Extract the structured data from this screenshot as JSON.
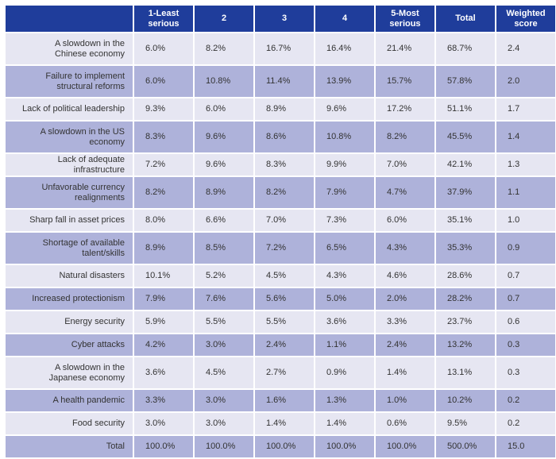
{
  "chart_data": {
    "type": "table",
    "columns": [
      "",
      "1-Least serious",
      "2",
      "3",
      "4",
      "5-Most serious",
      "Total",
      "Weighted score"
    ],
    "rows": [
      {
        "label": "A slowdown in the Chinese economy",
        "values": [
          "6.0%",
          "8.2%",
          "16.7%",
          "16.4%",
          "21.4%",
          "68.7%",
          "2.4"
        ]
      },
      {
        "label": "Failure to implement structural reforms",
        "values": [
          "6.0%",
          "10.8%",
          "11.4%",
          "13.9%",
          "15.7%",
          "57.8%",
          "2.0"
        ]
      },
      {
        "label": "Lack of political leadership",
        "values": [
          "9.3%",
          "6.0%",
          "8.9%",
          "9.6%",
          "17.2%",
          "51.1%",
          "1.7"
        ]
      },
      {
        "label": "A slowdown in the US economy",
        "values": [
          "8.3%",
          "9.6%",
          "8.6%",
          "10.8%",
          "8.2%",
          "45.5%",
          "1.4"
        ]
      },
      {
        "label": "Lack of adequate infrastructure",
        "values": [
          "7.2%",
          "9.6%",
          "8.3%",
          "9.9%",
          "7.0%",
          "42.1%",
          "1.3"
        ]
      },
      {
        "label": "Unfavorable currency realignments",
        "values": [
          "8.2%",
          "8.9%",
          "8.2%",
          "7.9%",
          "4.7%",
          "37.9%",
          "1.1"
        ]
      },
      {
        "label": "Sharp fall in asset prices",
        "values": [
          "8.0%",
          "6.6%",
          "7.0%",
          "7.3%",
          "6.0%",
          "35.1%",
          "1.0"
        ]
      },
      {
        "label": "Shortage of available talent/skills",
        "values": [
          "8.9%",
          "8.5%",
          "7.2%",
          "6.5%",
          "4.3%",
          "35.3%",
          "0.9"
        ]
      },
      {
        "label": "Natural disasters",
        "values": [
          "10.1%",
          "5.2%",
          "4.5%",
          "4.3%",
          "4.6%",
          "28.6%",
          "0.7"
        ]
      },
      {
        "label": "Increased protectionism",
        "values": [
          "7.9%",
          "7.6%",
          "5.6%",
          "5.0%",
          "2.0%",
          "28.2%",
          "0.7"
        ]
      },
      {
        "label": "Energy security",
        "values": [
          "5.9%",
          "5.5%",
          "5.5%",
          "3.6%",
          "3.3%",
          "23.7%",
          "0.6"
        ]
      },
      {
        "label": "Cyber attacks",
        "values": [
          "4.2%",
          "3.0%",
          "2.4%",
          "1.1%",
          "2.4%",
          "13.2%",
          "0.3"
        ]
      },
      {
        "label": "A slowdown in the Japanese economy",
        "values": [
          "3.6%",
          "4.5%",
          "2.7%",
          "0.9%",
          "1.4%",
          "13.1%",
          "0.3"
        ]
      },
      {
        "label": "A health pandemic",
        "values": [
          "3.3%",
          "3.0%",
          "1.6%",
          "1.3%",
          "1.0%",
          "10.2%",
          "0.2"
        ]
      },
      {
        "label": "Food security",
        "values": [
          "3.0%",
          "3.0%",
          "1.4%",
          "1.4%",
          "0.6%",
          "9.5%",
          "0.2"
        ]
      }
    ],
    "total_row": {
      "label": "Total",
      "values": [
        "100.0%",
        "100.0%",
        "100.0%",
        "100.0%",
        "100.0%",
        "500.0%",
        "15.0"
      ]
    },
    "colors": {
      "header_bg": "#1f3d9b",
      "header_text": "#ffffff",
      "row_light": "#e6e6f2",
      "row_dark": "#aeb2da",
      "text": "#333333"
    }
  }
}
